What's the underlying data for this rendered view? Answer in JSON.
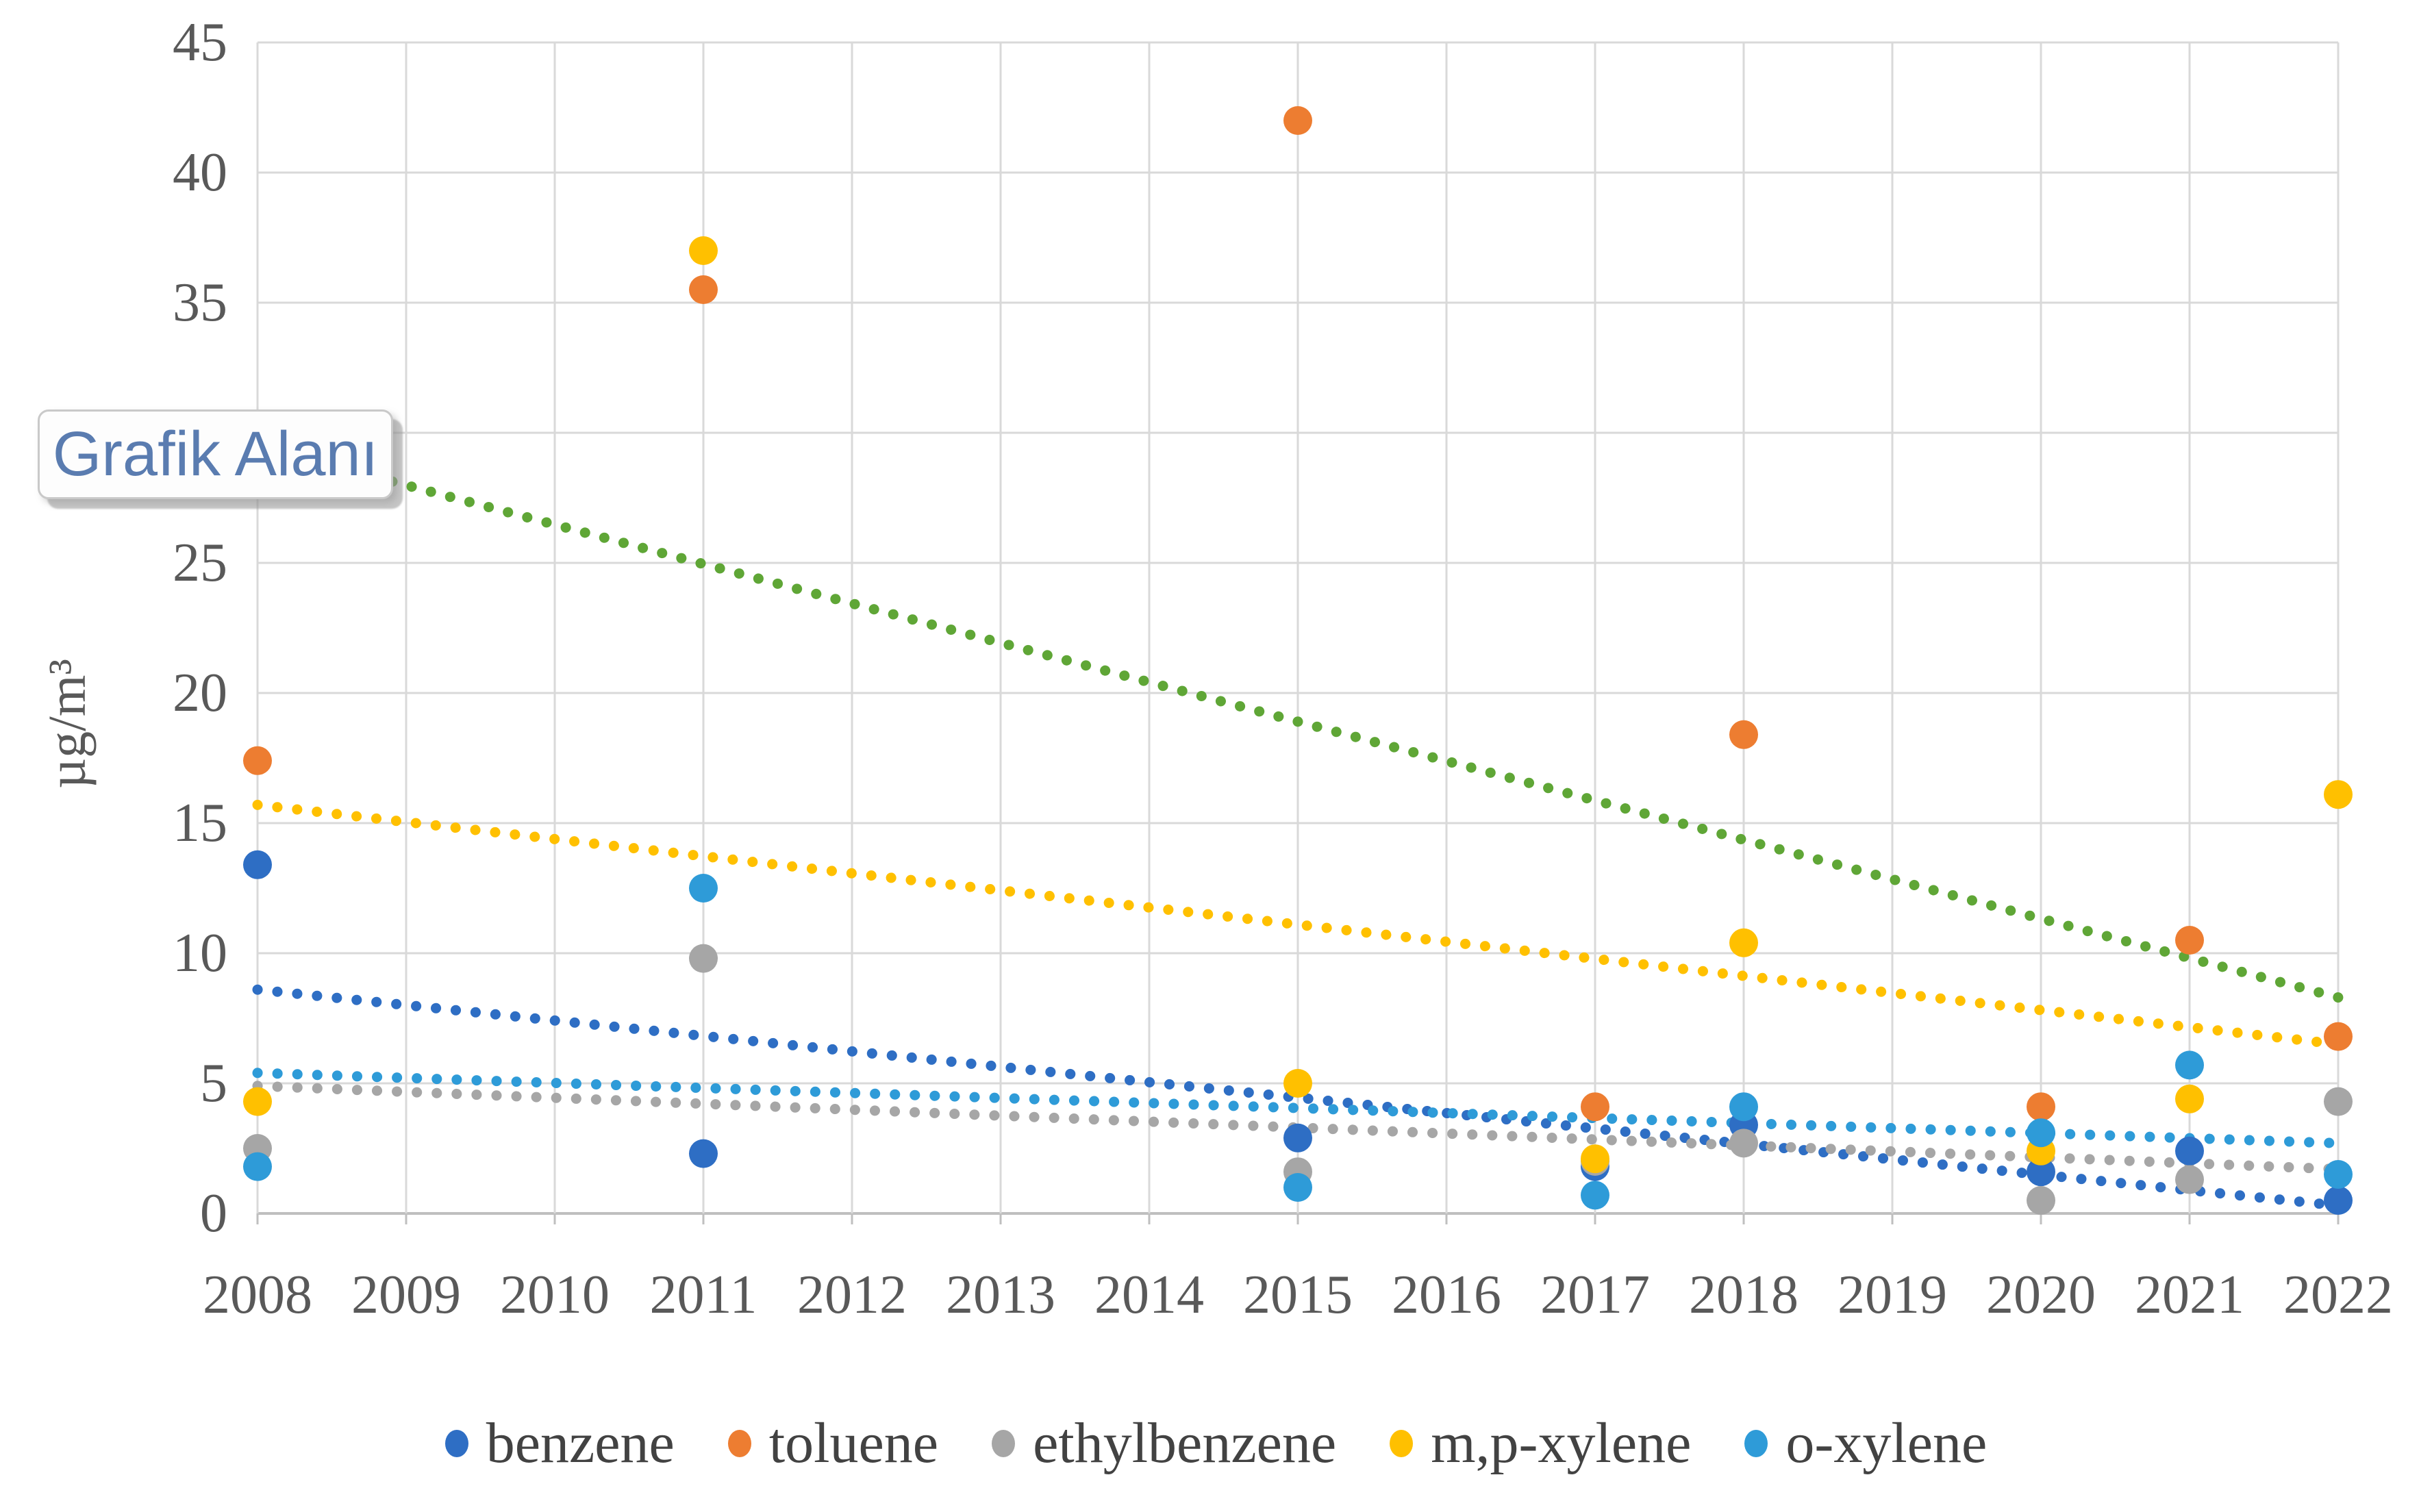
{
  "tooltip": {
    "text": "Grafik Alanı"
  },
  "colors": {
    "background": "#ffffff",
    "gridline": "#d9d9d9",
    "axis_line": "#bfbfbf",
    "tick_text": "#595959",
    "legend_text": "#424242",
    "tooltip_text": "#5a7cb0",
    "tooltip_border": "#c9c9c9"
  },
  "chart_data": {
    "type": "scatter",
    "title": "",
    "xlabel": "",
    "ylabel": "µg/m³",
    "ylim": [
      0,
      45
    ],
    "y_ticks": [
      0,
      5,
      10,
      15,
      20,
      25,
      30,
      35,
      40,
      45
    ],
    "x_ticks": [
      2008,
      2009,
      2010,
      2011,
      2012,
      2013,
      2014,
      2015,
      2016,
      2017,
      2018,
      2019,
      2020,
      2021,
      2022
    ],
    "grid": true,
    "legend_position": "bottom",
    "x": [
      2008,
      2011,
      2015,
      2017,
      2018,
      2020,
      2021,
      2022
    ],
    "series": [
      {
        "name": "benzene",
        "color": "#2e6ec4",
        "values": [
          13.4,
          2.3,
          2.9,
          1.8,
          3.4,
          1.6,
          2.4,
          0.5
        ],
        "trendline": {
          "type": "linear",
          "dotted": true,
          "color": "#2e6ec4",
          "y2008": 8.6,
          "y2022": 0.3
        }
      },
      {
        "name": "toluene",
        "color": "#ed7d31",
        "values": [
          17.4,
          35.5,
          42.0,
          4.1,
          18.4,
          4.1,
          10.5,
          6.8
        ],
        "trendline": {
          "type": "linear",
          "dotted": true,
          "color": "#5fa636",
          "y2008": 29.5,
          "y2022": 8.3
        }
      },
      {
        "name": "ethylbenzene",
        "color": "#a6a6a6",
        "values": [
          2.5,
          9.8,
          1.6,
          2.0,
          2.7,
          0.5,
          1.3,
          4.3
        ],
        "trendline": {
          "type": "linear",
          "dotted": true,
          "color": "#a6a6a6",
          "y2008": 4.9,
          "y2022": 1.7
        }
      },
      {
        "name": "m,p-xylene",
        "color": "#ffc000",
        "values": [
          4.3,
          37.0,
          5.0,
          2.1,
          10.4,
          2.4,
          4.4,
          16.1
        ],
        "trendline": {
          "type": "linear",
          "dotted": true,
          "color": "#ffc000",
          "y2008": 15.7,
          "y2022": 6.5
        }
      },
      {
        "name": "o-xylene",
        "color": "#2e9bd8",
        "values": [
          1.8,
          12.5,
          1.0,
          0.7,
          4.1,
          3.1,
          5.7,
          1.5
        ],
        "trendline": {
          "type": "linear",
          "dotted": true,
          "color": "#2e9bd8",
          "y2008": 5.4,
          "y2022": 2.7
        }
      }
    ]
  }
}
